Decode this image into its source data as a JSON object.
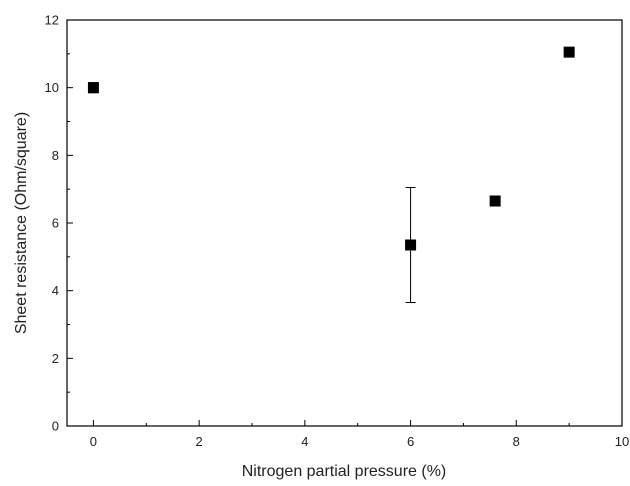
{
  "chart_data": {
    "type": "scatter",
    "title": "",
    "xlabel": "Nitrogen partial pressure (%)",
    "ylabel": "Sheet resistance (Ohm/square)",
    "xlim": [
      -0.5,
      10
    ],
    "ylim": [
      0,
      12
    ],
    "xticks": [
      0,
      2,
      4,
      6,
      8,
      10
    ],
    "yticks": [
      0,
      2,
      4,
      6,
      8,
      10,
      12
    ],
    "grid": false,
    "legend": "none",
    "marker": "square",
    "color": "#000000",
    "points": [
      {
        "x": 0.0,
        "y": 10.0,
        "err_low": 0.15,
        "err_high": 0.15
      },
      {
        "x": 6.0,
        "y": 5.35,
        "err_low": 1.7,
        "err_high": 1.7
      },
      {
        "x": 7.6,
        "y": 6.65,
        "err_low": 0.0,
        "err_high": 0.0
      },
      {
        "x": 9.0,
        "y": 11.05,
        "err_low": 0.12,
        "err_high": 0.12
      }
    ]
  }
}
